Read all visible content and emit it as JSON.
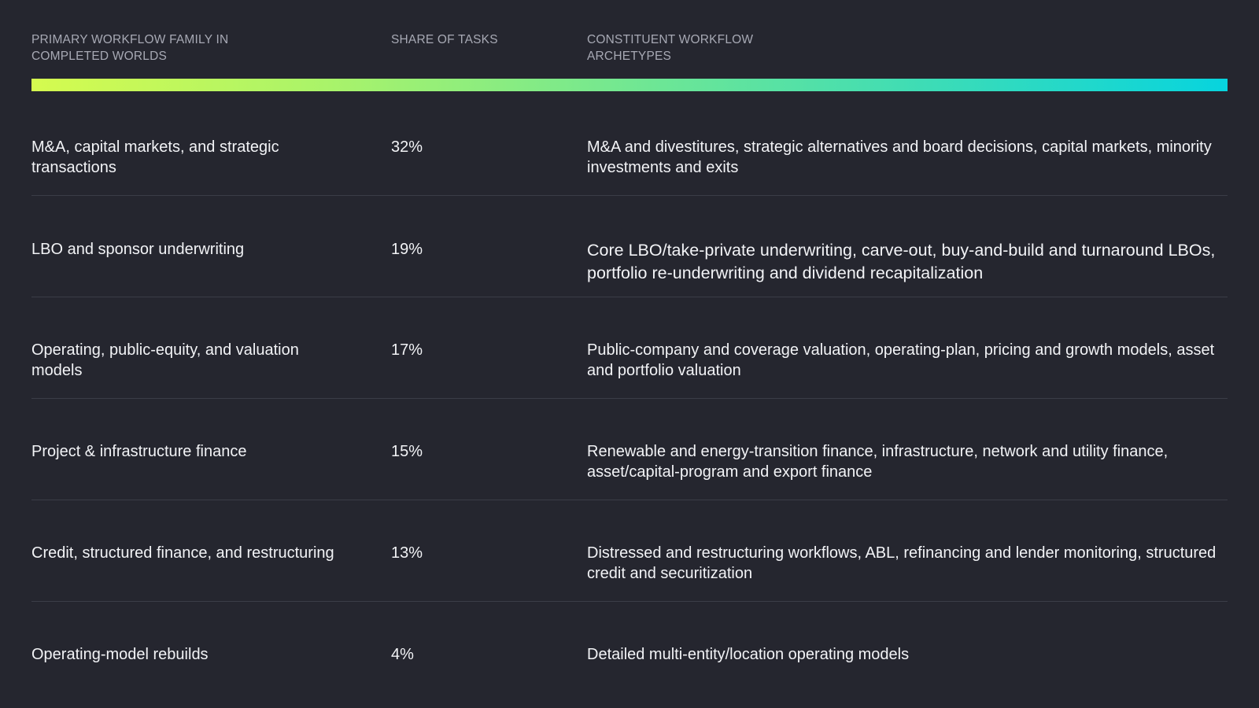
{
  "headers": {
    "family": "PRIMARY WORKFLOW FAMILY IN COMPLETED WORLDS",
    "share": "SHARE OF TASKS",
    "archetypes": "CONSTITUENT WORKFLOW ARCHETYPES"
  },
  "accent_gradient": [
    "#d5fb4f",
    "#07d4de"
  ],
  "rows": [
    {
      "family": "M&A, capital markets, and strategic transactions",
      "share": "32%",
      "archetypes": "M&A and divestitures, strategic alternatives and board decisions, capital markets, minority investments and exits"
    },
    {
      "family": "LBO and sponsor underwriting",
      "share": "19%",
      "archetypes": "Core LBO/take-private underwriting, carve-out, buy-and-build and turnaround LBOs, portfolio re-underwriting and dividend recapitalization"
    },
    {
      "family": "Operating, public-equity, and valuation models",
      "share": "17%",
      "archetypes": "Public-company and coverage valuation, operating-plan, pricing and growth models, asset and portfolio valuation"
    },
    {
      "family": "Project & infrastructure finance",
      "share": "15%",
      "archetypes": "Renewable and energy-transition finance, infrastructure, network and utility finance, asset/capital-program and export finance"
    },
    {
      "family": "Credit, structured finance, and restructuring",
      "share": "13%",
      "archetypes": "Distressed and restructuring workflows, ABL, refinancing and lender monitoring, structured credit and securitization"
    },
    {
      "family": "Operating-model rebuilds",
      "share": "4%",
      "archetypes": "Detailed multi-entity/location operating models"
    }
  ]
}
